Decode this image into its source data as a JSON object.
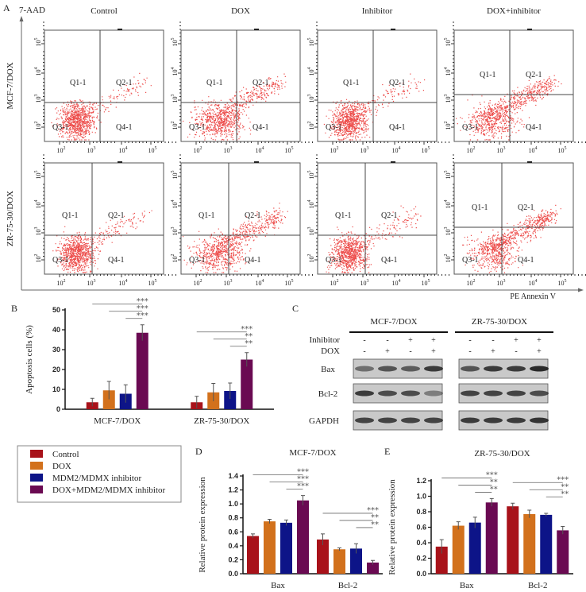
{
  "panel_a": {
    "label": "A",
    "y_axis_label": "7-AAD",
    "x_axis_label": "PE Annexin V",
    "columns": [
      "Control",
      "DOX",
      "Inhibitor",
      "DOX+inhibitor"
    ],
    "rows": [
      "MCF-7/DOX",
      "ZR-75-30/DOX"
    ],
    "quadrants": [
      "Q1-1",
      "Q2-1",
      "Q3-1",
      "Q4-1"
    ],
    "tick_exponents": [
      "2",
      "3",
      "4",
      "5"
    ],
    "tick_base": "10",
    "dot_color": "#e8201e"
  },
  "legend": {
    "items": [
      {
        "label": "Control",
        "color": "#a8121a"
      },
      {
        "label": "DOX",
        "color": "#d2711c"
      },
      {
        "label": "MDM2/MDMX inhibitor",
        "color": "#0d1488"
      },
      {
        "label": "DOX+MDM2/MDMX inhibitor",
        "color": "#6a0a52"
      }
    ]
  },
  "panel_c": {
    "label": "C",
    "cell_lines": [
      "MCF-7/DOX",
      "ZR-75-30/DOX"
    ],
    "conditions": [
      {
        "label": "Inhibitor",
        "values": [
          "-",
          "-",
          "+",
          "+"
        ]
      },
      {
        "label": "DOX",
        "values": [
          "-",
          "+",
          "-",
          "+"
        ]
      }
    ],
    "proteins": [
      "Bax",
      "Bcl-2",
      "GAPDH"
    ]
  },
  "chart_data": [
    {
      "panel": "B",
      "type": "bar",
      "title": "",
      "ylabel": "Apoptosis cells (%)",
      "xlabel": "",
      "categories": [
        "MCF-7/DOX",
        "ZR-75-30/DOX"
      ],
      "ylim": [
        0,
        50
      ],
      "yticks": [
        0,
        10,
        20,
        30,
        40,
        50
      ],
      "series": [
        {
          "name": "Control",
          "values": [
            3.5,
            3.5
          ],
          "errors": [
            2.0,
            3.0
          ]
        },
        {
          "name": "DOX",
          "values": [
            9.5,
            8.5
          ],
          "errors": [
            4.5,
            4.5
          ]
        },
        {
          "name": "MDM2/MDMX inhibitor",
          "values": [
            7.8,
            9.2
          ],
          "errors": [
            4.5,
            4.0
          ]
        },
        {
          "name": "DOX+MDM2/MDMX inhibitor",
          "values": [
            38.5,
            25.0
          ],
          "errors": [
            4.0,
            3.5
          ]
        }
      ],
      "significance": [
        [
          "***",
          "***",
          "***"
        ],
        [
          "***",
          "**",
          "**"
        ]
      ]
    },
    {
      "panel": "D",
      "type": "bar",
      "title": "MCF-7/DOX",
      "ylabel": "Relative protein expression",
      "xlabel": "",
      "categories": [
        "Bax",
        "Bcl-2"
      ],
      "ylim": [
        0,
        1.4
      ],
      "yticks": [
        "0.0",
        "0.2",
        "0.4",
        "0.6",
        "0.8",
        "1.0",
        "1.2",
        "1.4"
      ],
      "series": [
        {
          "name": "Control",
          "values": [
            0.54,
            0.49
          ],
          "errors": [
            0.03,
            0.08
          ]
        },
        {
          "name": "DOX",
          "values": [
            0.75,
            0.35
          ],
          "errors": [
            0.03,
            0.02
          ]
        },
        {
          "name": "MDM2/MDMX inhibitor",
          "values": [
            0.73,
            0.36
          ],
          "errors": [
            0.04,
            0.07
          ]
        },
        {
          "name": "DOX+MDM2/MDMX inhibitor",
          "values": [
            1.05,
            0.16
          ],
          "errors": [
            0.07,
            0.03
          ]
        }
      ],
      "significance": [
        [
          "***",
          "***",
          "***"
        ],
        [
          "***",
          "**",
          "**"
        ]
      ]
    },
    {
      "panel": "E",
      "type": "bar",
      "title": "ZR-75-30/DOX",
      "ylabel": "Relative protein expression",
      "xlabel": "",
      "categories": [
        "Bax",
        "Bcl-2"
      ],
      "ylim": [
        0,
        1.2
      ],
      "yticks": [
        "0.0",
        "0.2",
        "0.4",
        "0.6",
        "0.8",
        "1.0",
        "1.2"
      ],
      "series": [
        {
          "name": "Control",
          "values": [
            0.35,
            0.87
          ],
          "errors": [
            0.09,
            0.04
          ]
        },
        {
          "name": "DOX",
          "values": [
            0.62,
            0.77
          ],
          "errors": [
            0.05,
            0.05
          ]
        },
        {
          "name": "MDM2/MDMX inhibitor",
          "values": [
            0.66,
            0.76
          ],
          "errors": [
            0.07,
            0.02
          ]
        },
        {
          "name": "DOX+MDM2/MDMX inhibitor",
          "values": [
            0.92,
            0.56
          ],
          "errors": [
            0.05,
            0.05
          ]
        }
      ],
      "significance": [
        [
          "***",
          "**",
          "**"
        ],
        [
          "***",
          "**",
          "**"
        ]
      ]
    }
  ]
}
